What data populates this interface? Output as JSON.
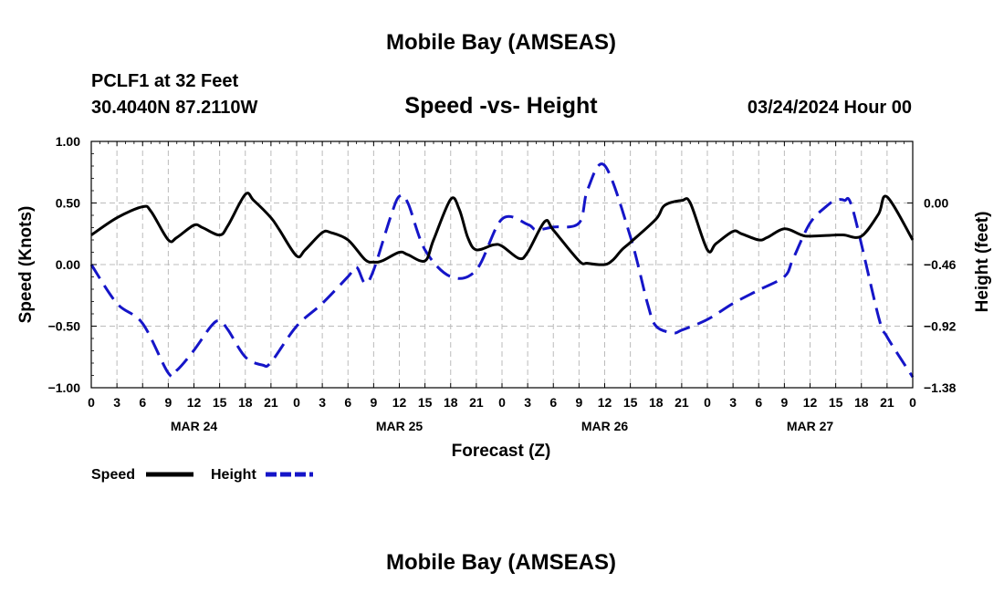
{
  "header": {
    "title": "Mobile Bay (AMSEAS)",
    "station": "PCLF1 at 32 Feet",
    "coords": "30.4040N  87.2110W",
    "date": "03/24/2024 Hour 00",
    "footer_title": "Mobile Bay (AMSEAS)"
  },
  "colors": {
    "speed": "#000000",
    "height": "#1515c8",
    "grid": "#bbbbbb"
  },
  "chart_data": {
    "type": "line",
    "title": "Speed -vs- Height",
    "xlabel": "Forecast (Z)",
    "ylabel": "Speed (Knots)",
    "y2label": "Height (feet)",
    "xlim": [
      0,
      96
    ],
    "ylim": [
      -1.0,
      1.0
    ],
    "y2lim": [
      -1.38,
      0.46
    ],
    "x_ticks": [
      0,
      3,
      6,
      9,
      12,
      15,
      18,
      21,
      24,
      27,
      30,
      33,
      36,
      39,
      42,
      45,
      48,
      51,
      54,
      57,
      60,
      63,
      66,
      69,
      72,
      75,
      78,
      81,
      84,
      87,
      90,
      93,
      96
    ],
    "x_tick_labels": [
      "0",
      "3",
      "6",
      "9",
      "12",
      "15",
      "18",
      "21",
      "0",
      "3",
      "6",
      "9",
      "12",
      "15",
      "18",
      "21",
      "0",
      "3",
      "6",
      "9",
      "12",
      "15",
      "18",
      "21",
      "0",
      "3",
      "6",
      "9",
      "12",
      "15",
      "18",
      "21",
      "0"
    ],
    "day_labels": [
      {
        "x": 12,
        "label": "MAR 24"
      },
      {
        "x": 36,
        "label": "MAR 25"
      },
      {
        "x": 60,
        "label": "MAR 26"
      },
      {
        "x": 84,
        "label": "MAR 27"
      }
    ],
    "y_ticks": [
      1.0,
      0.5,
      0.0,
      -0.5,
      -1.0
    ],
    "y_tick_labels": [
      "1.00",
      "0.50",
      "0.00",
      "−0.50",
      "−1.00"
    ],
    "y2_ticks": [
      0.0,
      -0.46,
      -0.92,
      -1.38
    ],
    "y2_tick_labels": [
      "0.00",
      "−0.46",
      "−0.92",
      "−1.38"
    ],
    "series": [
      {
        "name": "Speed",
        "axis": "left",
        "style": "solid",
        "x": [
          0,
          3,
          6,
          7,
          9,
          10,
          12,
          13,
          15,
          16,
          18,
          19,
          21,
          22,
          24,
          25,
          27,
          28,
          30,
          32,
          33,
          34,
          36,
          37,
          39,
          40,
          42,
          43,
          44,
          45,
          47,
          48,
          50,
          51,
          53,
          54,
          57,
          58,
          60,
          61,
          62,
          63,
          66,
          67,
          69,
          70,
          72,
          73,
          75,
          76,
          78,
          79,
          81,
          83,
          84,
          87,
          88,
          90,
          92,
          93,
          96
        ],
        "values": [
          0.24,
          0.38,
          0.47,
          0.43,
          0.2,
          0.22,
          0.32,
          0.3,
          0.24,
          0.32,
          0.57,
          0.52,
          0.38,
          0.28,
          0.07,
          0.12,
          0.26,
          0.26,
          0.2,
          0.04,
          0.02,
          0.03,
          0.1,
          0.08,
          0.03,
          0.2,
          0.53,
          0.45,
          0.22,
          0.12,
          0.16,
          0.15,
          0.05,
          0.1,
          0.35,
          0.28,
          0.03,
          0.01,
          0.0,
          0.04,
          0.12,
          0.18,
          0.37,
          0.48,
          0.52,
          0.5,
          0.12,
          0.17,
          0.27,
          0.25,
          0.2,
          0.22,
          0.29,
          0.24,
          0.23,
          0.24,
          0.24,
          0.23,
          0.41,
          0.55,
          0.2
        ]
      },
      {
        "name": "Height",
        "axis": "right",
        "style": "dashed",
        "x": [
          0,
          3,
          6,
          9,
          10,
          12,
          14,
          15,
          16,
          18,
          20,
          21,
          24,
          27,
          30,
          31,
          32,
          33,
          35,
          36,
          37,
          39,
          42,
          45,
          48,
          51,
          52,
          54,
          57,
          58,
          60,
          63,
          65,
          66,
          68,
          69,
          72,
          75,
          78,
          81,
          82,
          84,
          86,
          87,
          88,
          89,
          92,
          93,
          96
        ],
        "values": [
          -0.46,
          -0.75,
          -0.9,
          -1.27,
          -1.25,
          -1.1,
          -0.92,
          -0.88,
          -0.95,
          -1.15,
          -1.21,
          -1.19,
          -0.92,
          -0.75,
          -0.55,
          -0.48,
          -0.6,
          -0.5,
          -0.1,
          0.05,
          0.0,
          -0.35,
          -0.55,
          -0.5,
          -0.12,
          -0.16,
          -0.2,
          -0.18,
          -0.15,
          0.1,
          0.28,
          -0.25,
          -0.75,
          -0.92,
          -0.97,
          -0.95,
          -0.87,
          -0.75,
          -0.65,
          -0.55,
          -0.42,
          -0.15,
          -0.02,
          0.02,
          0.02,
          -0.05,
          -0.85,
          -1.0,
          -1.3
        ]
      }
    ]
  }
}
